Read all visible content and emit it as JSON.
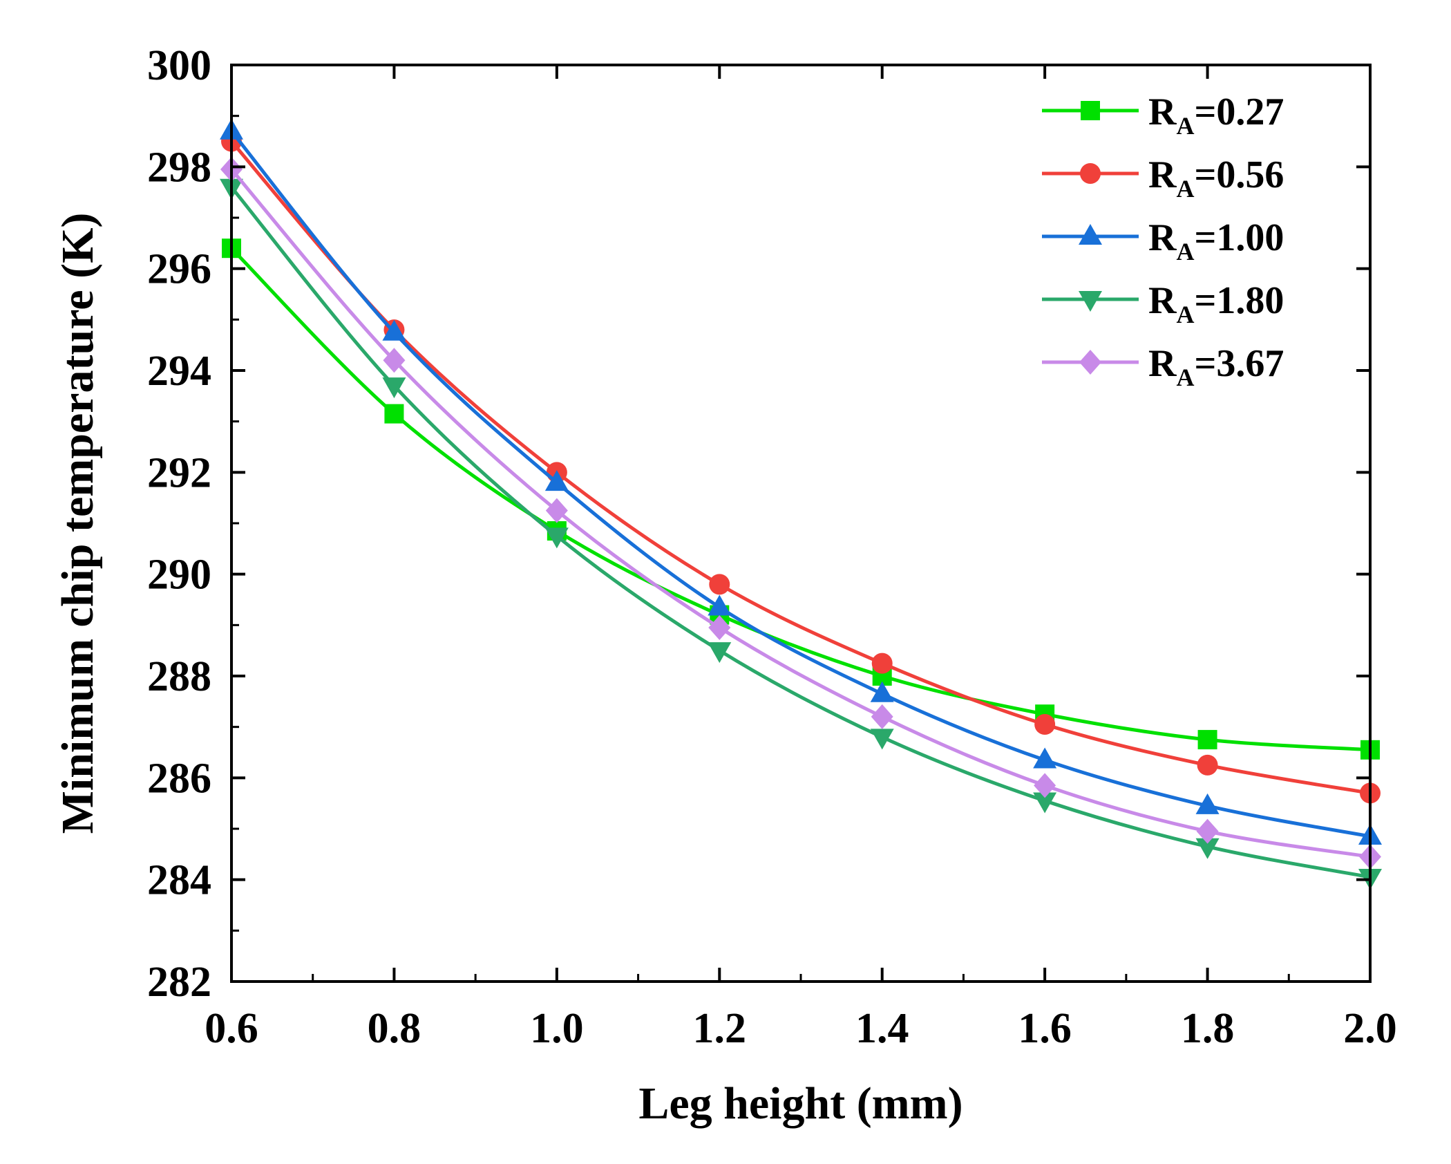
{
  "chart_data": {
    "type": "line",
    "title": "",
    "xlabel": "Leg height (mm)",
    "ylabel": "Minimum chip temperature (K)",
    "xlim": [
      0.6,
      2.0
    ],
    "ylim": [
      282,
      300
    ],
    "x": [
      0.6,
      0.8,
      1.0,
      1.2,
      1.4,
      1.6,
      1.8,
      2.0
    ],
    "x_ticks": [
      "0.6",
      "0.8",
      "1.0",
      "1.2",
      "1.4",
      "1.6",
      "1.8",
      "2.0"
    ],
    "y_ticks": [
      "282",
      "284",
      "286",
      "288",
      "290",
      "292",
      "294",
      "296",
      "298",
      "300"
    ],
    "legend_position": "top-right",
    "grid": false,
    "series": [
      {
        "name": "R_A=0.27",
        "label_main": "R",
        "label_sub": "A",
        "label_value": "=0.27",
        "color": "#00e000",
        "marker": "square",
        "values": [
          296.4,
          293.15,
          290.85,
          289.2,
          288.0,
          287.25,
          286.75,
          286.55
        ]
      },
      {
        "name": "R_A=0.56",
        "label_main": "R",
        "label_sub": "A",
        "label_value": "=0.56",
        "color": "#f0403a",
        "marker": "circle",
        "values": [
          298.5,
          294.8,
          292.0,
          289.8,
          288.25,
          287.05,
          286.25,
          285.7
        ]
      },
      {
        "name": "R_A=1.00",
        "label_main": "R",
        "label_sub": "A",
        "label_value": "=1.00",
        "color": "#1870d8",
        "marker": "triangle-up",
        "values": [
          298.7,
          294.75,
          291.8,
          289.35,
          287.65,
          286.35,
          285.45,
          284.85
        ]
      },
      {
        "name": "R_A=1.80",
        "label_main": "R",
        "label_sub": "A",
        "label_value": "=1.80",
        "color": "#2aa86a",
        "marker": "triangle-down",
        "values": [
          297.6,
          293.7,
          290.75,
          288.5,
          286.8,
          285.55,
          284.65,
          284.05
        ]
      },
      {
        "name": "R_A=3.67",
        "label_main": "R",
        "label_sub": "A",
        "label_value": "=3.67",
        "color": "#c88ae8",
        "marker": "diamond",
        "values": [
          297.95,
          294.2,
          291.25,
          288.95,
          287.2,
          285.85,
          284.95,
          284.45
        ]
      }
    ]
  }
}
